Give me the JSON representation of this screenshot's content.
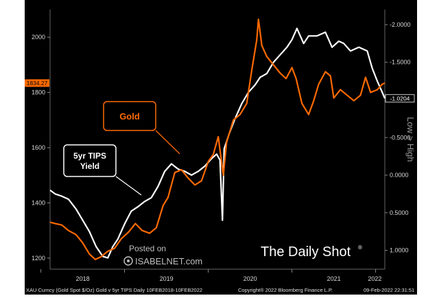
{
  "chart_data": {
    "type": "line",
    "x_ticks": [
      "2018",
      "2019",
      "2020",
      "2021",
      "2022"
    ],
    "left_axis": {
      "ticks": [
        "1200",
        "1400",
        "1600",
        "1800",
        "2000"
      ],
      "ylim": [
        1160,
        2100
      ]
    },
    "right_axis": {
      "ticks": [
        "-2.0000",
        "-1.5000",
        "-1.0000",
        "-0.5000",
        "0.0000",
        "0.5000",
        "1.0000"
      ],
      "label": "Low > High",
      "ylim": [
        1.25,
        -2.2
      ],
      "inverted": true
    },
    "series": [
      {
        "name": "Gold",
        "color": "#ff6a00",
        "axis": "left",
        "last_label": "1834.27",
        "points": [
          [
            2018.11,
            1330
          ],
          [
            2018.17,
            1325
          ],
          [
            2018.25,
            1320
          ],
          [
            2018.33,
            1300
          ],
          [
            2018.42,
            1285
          ],
          [
            2018.5,
            1255
          ],
          [
            2018.58,
            1215
          ],
          [
            2018.65,
            1195
          ],
          [
            2018.72,
            1205
          ],
          [
            2018.8,
            1225
          ],
          [
            2018.88,
            1235
          ],
          [
            2018.96,
            1270
          ],
          [
            2019.05,
            1295
          ],
          [
            2019.13,
            1325
          ],
          [
            2019.21,
            1300
          ],
          [
            2019.3,
            1290
          ],
          [
            2019.38,
            1310
          ],
          [
            2019.46,
            1390
          ],
          [
            2019.52,
            1420
          ],
          [
            2019.6,
            1510
          ],
          [
            2019.68,
            1520
          ],
          [
            2019.76,
            1490
          ],
          [
            2019.84,
            1465
          ],
          [
            2019.92,
            1480
          ],
          [
            2020.0,
            1550
          ],
          [
            2020.06,
            1575
          ],
          [
            2020.12,
            1640
          ],
          [
            2020.18,
            1500
          ],
          [
            2020.22,
            1620
          ],
          [
            2020.3,
            1700
          ],
          [
            2020.38,
            1720
          ],
          [
            2020.46,
            1760
          ],
          [
            2020.52,
            1880
          ],
          [
            2020.58,
            1990
          ],
          [
            2020.6,
            2065
          ],
          [
            2020.64,
            1970
          ],
          [
            2020.7,
            1930
          ],
          [
            2020.78,
            1900
          ],
          [
            2020.86,
            1870
          ],
          [
            2020.93,
            1850
          ],
          [
            2021.0,
            1890
          ],
          [
            2021.05,
            1850
          ],
          [
            2021.12,
            1760
          ],
          [
            2021.2,
            1720
          ],
          [
            2021.26,
            1770
          ],
          [
            2021.32,
            1830
          ],
          [
            2021.4,
            1875
          ],
          [
            2021.46,
            1860
          ],
          [
            2021.5,
            1780
          ],
          [
            2021.58,
            1810
          ],
          [
            2021.66,
            1790
          ],
          [
            2021.74,
            1770
          ],
          [
            2021.82,
            1790
          ],
          [
            2021.88,
            1855
          ],
          [
            2021.94,
            1800
          ],
          [
            2022.02,
            1810
          ],
          [
            2022.08,
            1830
          ],
          [
            2022.11,
            1834
          ]
        ]
      },
      {
        "name": "5yr TIPS Yield",
        "color": "#ffffff",
        "axis": "right",
        "last_label": "-1.0204",
        "points": [
          [
            2018.11,
            0.2
          ],
          [
            2018.17,
            0.25
          ],
          [
            2018.25,
            0.28
          ],
          [
            2018.33,
            0.32
          ],
          [
            2018.42,
            0.45
          ],
          [
            2018.5,
            0.6
          ],
          [
            2018.58,
            0.75
          ],
          [
            2018.66,
            0.95
          ],
          [
            2018.74,
            1.08
          ],
          [
            2018.8,
            1.1
          ],
          [
            2018.86,
            0.95
          ],
          [
            2018.92,
            0.85
          ],
          [
            2019.0,
            0.65
          ],
          [
            2019.08,
            0.48
          ],
          [
            2019.16,
            0.42
          ],
          [
            2019.24,
            0.35
          ],
          [
            2019.32,
            0.3
          ],
          [
            2019.4,
            0.15
          ],
          [
            2019.48,
            -0.05
          ],
          [
            2019.56,
            -0.15
          ],
          [
            2019.64,
            -0.08
          ],
          [
            2019.72,
            -0.05
          ],
          [
            2019.8,
            0.0
          ],
          [
            2019.88,
            -0.05
          ],
          [
            2019.96,
            -0.12
          ],
          [
            2020.04,
            -0.22
          ],
          [
            2020.1,
            -0.28
          ],
          [
            2020.14,
            -0.2
          ],
          [
            2020.17,
            0.6
          ],
          [
            2020.19,
            -0.35
          ],
          [
            2020.25,
            -0.55
          ],
          [
            2020.32,
            -0.75
          ],
          [
            2020.4,
            -0.95
          ],
          [
            2020.48,
            -1.1
          ],
          [
            2020.56,
            -1.2
          ],
          [
            2020.62,
            -1.3
          ],
          [
            2020.7,
            -1.35
          ],
          [
            2020.78,
            -1.5
          ],
          [
            2020.86,
            -1.6
          ],
          [
            2020.94,
            -1.7
          ],
          [
            2021.0,
            -1.8
          ],
          [
            2021.06,
            -1.95
          ],
          [
            2021.14,
            -1.75
          ],
          [
            2021.2,
            -1.85
          ],
          [
            2021.3,
            -1.85
          ],
          [
            2021.4,
            -1.9
          ],
          [
            2021.48,
            -1.7
          ],
          [
            2021.56,
            -1.78
          ],
          [
            2021.62,
            -1.75
          ],
          [
            2021.7,
            -1.65
          ],
          [
            2021.8,
            -1.7
          ],
          [
            2021.9,
            -1.65
          ],
          [
            2021.96,
            -1.42
          ],
          [
            2022.02,
            -1.25
          ],
          [
            2022.08,
            -1.1
          ],
          [
            2022.11,
            -1.02
          ]
        ]
      }
    ]
  },
  "annotations": {
    "gold_label": "Gold",
    "tips_label": "5yr TIPS\nYield"
  },
  "watermark": {
    "posted_on": "Posted on",
    "site": "ISABELNET.com",
    "brand": "The Daily Shot",
    "brand_mark": "®"
  },
  "footer": {
    "left": "XAU Curncy (Gold Spot  $/Oz) Gold v 5yr TIPS  Daily 10FEB2018-10FEB2022",
    "center": "Copyright® 2022 Bloomberg Finance L.P.",
    "right": "09-Feb-2022 22:31:51"
  },
  "colors": {
    "background": "#000000",
    "gold": "#ff6a00",
    "tips": "#ffffff",
    "axis_text": "#d8d8d8"
  }
}
